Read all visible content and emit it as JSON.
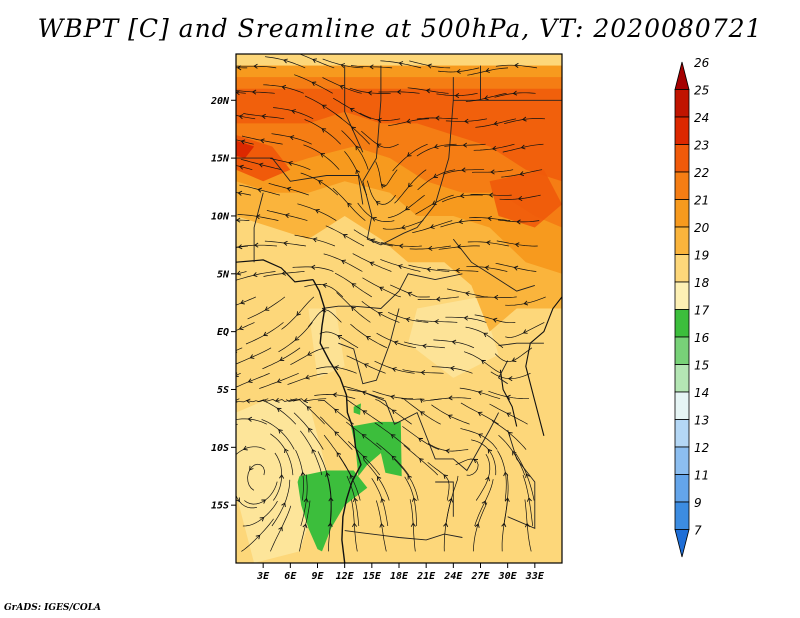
{
  "title": "WBPT [C] and Sreamline at 500hPa, VT: 2020080721",
  "credit": "GrADS: IGES/COLA",
  "map": {
    "lon_range": [
      0,
      36
    ],
    "lat_range": [
      -20,
      24
    ],
    "lat_ticks": [
      {
        "value": 20,
        "label": "20N"
      },
      {
        "value": 15,
        "label": "15N"
      },
      {
        "value": 10,
        "label": "10N"
      },
      {
        "value": 5,
        "label": "5N"
      },
      {
        "value": 0,
        "label": "EQ"
      },
      {
        "value": -5,
        "label": "5S"
      },
      {
        "value": -10,
        "label": "10S"
      },
      {
        "value": -15,
        "label": "15S"
      }
    ],
    "lon_ticks": [
      {
        "value": 3,
        "label": "3E"
      },
      {
        "value": 6,
        "label": "6E"
      },
      {
        "value": 9,
        "label": "9E"
      },
      {
        "value": 12,
        "label": "12E"
      },
      {
        "value": 15,
        "label": "15E"
      },
      {
        "value": 18,
        "label": "18E"
      },
      {
        "value": 21,
        "label": "21E"
      },
      {
        "value": 24,
        "label": "24E"
      },
      {
        "value": 27,
        "label": "27E"
      },
      {
        "value": 30,
        "label": "30E"
      },
      {
        "value": 33,
        "label": "33E"
      }
    ]
  },
  "colorbar": {
    "levels": [
      {
        "label": "26",
        "color": "#a50000"
      },
      {
        "label": "25",
        "color": "#c01400"
      },
      {
        "label": "24",
        "color": "#dc2800"
      },
      {
        "label": "23",
        "color": "#f05a0a"
      },
      {
        "label": "22",
        "color": "#f57d14"
      },
      {
        "label": "21",
        "color": "#f79a1e"
      },
      {
        "label": "20",
        "color": "#fab43c"
      },
      {
        "label": "19",
        "color": "#fdd77a"
      },
      {
        "label": "18",
        "color": "#fdf0b4"
      },
      {
        "label": "17",
        "color": "#3cbe3c"
      },
      {
        "label": "16",
        "color": "#78d278"
      },
      {
        "label": "15",
        "color": "#b4e6b4"
      },
      {
        "label": "14",
        "color": "#e6f5f5"
      },
      {
        "label": "13",
        "color": "#b4d7f5"
      },
      {
        "label": "12",
        "color": "#8cbef0"
      },
      {
        "label": "11",
        "color": "#64a5ea"
      },
      {
        "label": "9",
        "color": "#3c8ce1"
      },
      {
        "label": "7",
        "color": "#1e6ed7"
      }
    ]
  }
}
